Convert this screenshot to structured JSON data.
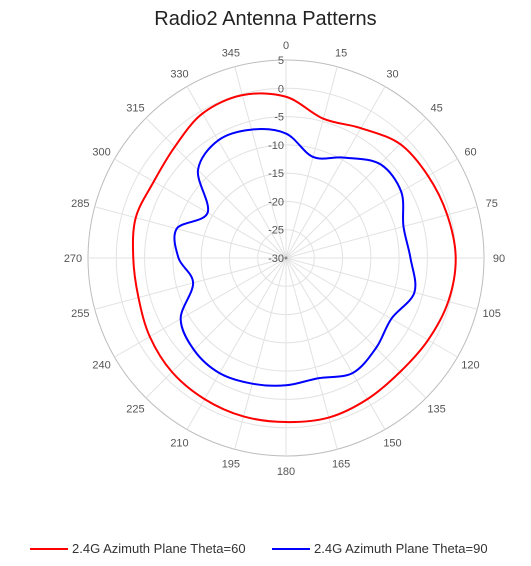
{
  "chart_data": {
    "type": "polar-line",
    "title": "Radio2 Antenna Patterns",
    "angle_direction": "clockwise",
    "angle_zero": "top",
    "angle_step": 15,
    "angle_ticks": [
      "0",
      "15",
      "30",
      "45",
      "60",
      "75",
      "90",
      "105",
      "120",
      "135",
      "150",
      "165",
      "180",
      "195",
      "210",
      "225",
      "240",
      "255",
      "270",
      "285",
      "300",
      "315",
      "330",
      "345"
    ],
    "r_range": [
      -30,
      5
    ],
    "r_ticks": [
      "5",
      "0",
      "-5",
      "-10",
      "-15",
      "-20",
      "-25",
      "-30"
    ],
    "grid": true,
    "legend_placement": "bottom",
    "colors": {
      "series1": "#ff0000",
      "series2": "#0000ff"
    },
    "series": [
      {
        "name": "2.4G Azimuth Plane Theta=60",
        "color": "#ff0000",
        "theta": [
          0,
          15,
          30,
          45,
          60,
          75,
          90,
          105,
          120,
          135,
          150,
          165,
          180,
          195,
          210,
          225,
          240,
          255,
          270,
          285,
          300,
          315,
          330,
          345
        ],
        "values": [
          -1.5,
          -4.5,
          -3.5,
          -1.5,
          -1.0,
          -0.5,
          0.0,
          -0.3,
          -1.0,
          -1.5,
          -1.2,
          -0.8,
          -1.0,
          -1.0,
          -1.2,
          -1.5,
          -2.2,
          -3.0,
          -3.0,
          -2.5,
          -3.0,
          -2.2,
          -0.5,
          -0.2
        ]
      },
      {
        "name": "2.4G Azimuth Plane Theta=90",
        "color": "#0000ff",
        "theta": [
          0,
          15,
          30,
          45,
          60,
          75,
          90,
          105,
          120,
          135,
          150,
          165,
          180,
          195,
          210,
          225,
          240,
          255,
          270,
          285,
          300,
          315,
          330,
          345
        ],
        "values": [
          -8.0,
          -11.5,
          -9.5,
          -6.5,
          -6.5,
          -8.5,
          -8.0,
          -6.5,
          -8.5,
          -7.5,
          -6.5,
          -8.0,
          -7.5,
          -7.0,
          -6.5,
          -7.0,
          -8.5,
          -13.0,
          -11.0,
          -10.0,
          -14.0,
          -8.0,
          -6.0,
          -6.5
        ]
      }
    ]
  }
}
